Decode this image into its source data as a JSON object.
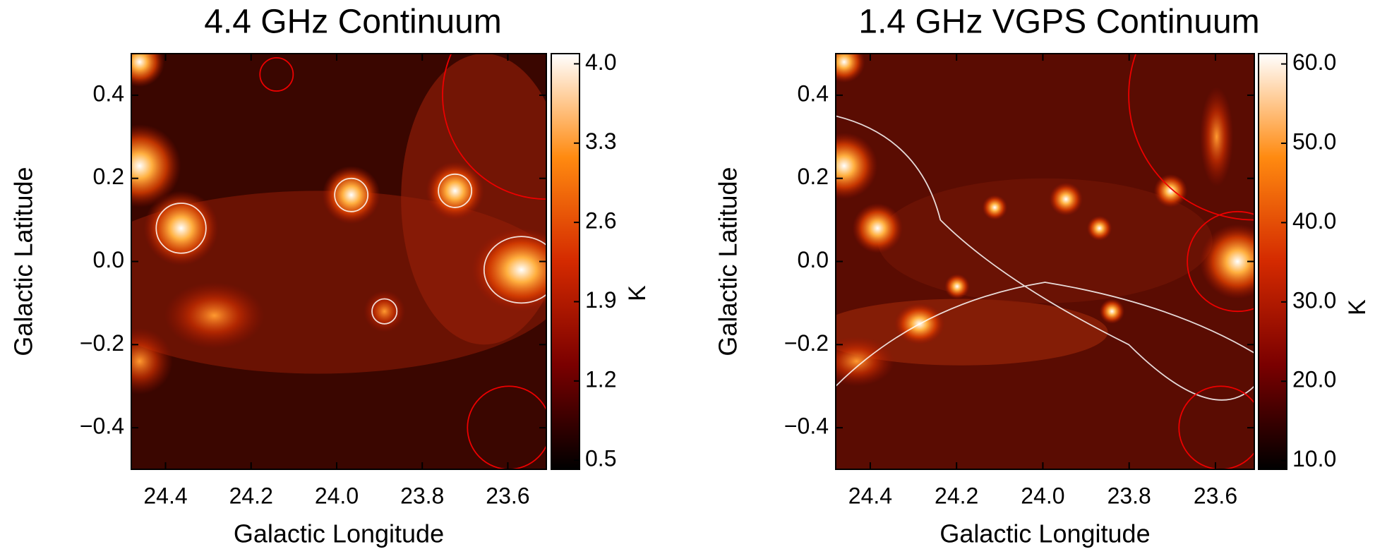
{
  "chart_data": [
    {
      "type": "heatmap",
      "title": "4.4 GHz Continuum",
      "xlabel": "Galactic Longitude",
      "ylabel": "Galactic Latitude",
      "colorbar_label": "K",
      "xlim": [
        24.48,
        23.51
      ],
      "ylim": [
        -0.5,
        0.5
      ],
      "xticks": [
        24.4,
        24.2,
        {
          "value": 24.0,
          "label": "24.0"
        },
        23.8,
        23.6
      ],
      "yticks": [
        {
          "value": -0.4,
          "label": "−0.4"
        },
        {
          "value": -0.2,
          "label": "−0.2"
        },
        {
          "value": 0.0,
          "label": "0.0"
        },
        0.2,
        0.4
      ],
      "clim": [
        0.42,
        4.09
      ],
      "cticks": [
        0.5,
        1.2,
        1.9,
        2.6,
        3.3,
        {
          "value": 4.0,
          "label": "4.0"
        }
      ],
      "colormap": [
        "#000000",
        "#7a0000",
        "#d42a00",
        "#ff8a10",
        "#ffffff"
      ]
    },
    {
      "type": "heatmap",
      "title": "1.4 GHz VGPS Continuum",
      "xlabel": "Galactic Longitude",
      "ylabel": "Galactic Latitude",
      "colorbar_label": "K",
      "xlim": [
        24.48,
        23.51
      ],
      "ylim": [
        -0.5,
        0.5
      ],
      "xticks": [
        24.4,
        24.2,
        {
          "value": 24.0,
          "label": "24.0"
        },
        23.8,
        23.6
      ],
      "yticks": [
        {
          "value": -0.4,
          "label": "−0.4"
        },
        {
          "value": -0.2,
          "label": "−0.2"
        },
        {
          "value": 0.0,
          "label": "0.0"
        },
        0.2,
        0.4
      ],
      "clim": [
        8.9,
        61.3
      ],
      "cticks": [
        {
          "value": 10,
          "label": "10.0"
        },
        {
          "value": 20,
          "label": "20.0"
        },
        {
          "value": 30,
          "label": "30.0"
        },
        {
          "value": 40,
          "label": "40.0"
        },
        {
          "value": 50,
          "label": "50.0"
        },
        {
          "value": 60,
          "label": "60.0"
        }
      ],
      "colormap": [
        "#000000",
        "#7a0000",
        "#d42a00",
        "#ff8a10",
        "#ffffff"
      ]
    }
  ]
}
